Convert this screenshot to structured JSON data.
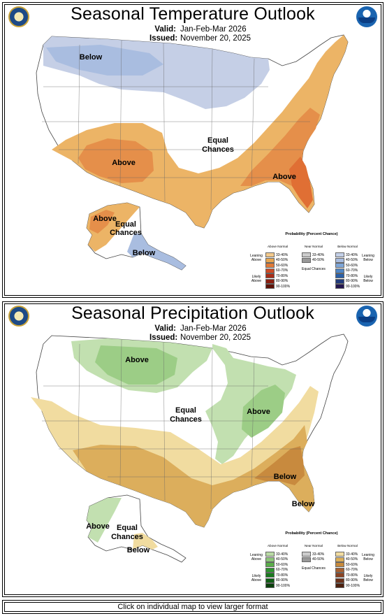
{
  "temperature": {
    "title": "Seasonal Temperature Outlook",
    "valid_key": "Valid:",
    "valid_value": "Jan-Feb-Mar 2026",
    "issued_key": "Issued:",
    "issued_value": "November 20, 2025",
    "labels": {
      "below_north": "Below",
      "above_sw": "Above",
      "equal_center": "Equal Chances",
      "above_se": "Above",
      "above_ak": "Above",
      "equal_ak": "Equal Chances",
      "below_ak": "Below"
    },
    "legend": {
      "title": "Probability (Percent Chance)",
      "col_left": "Above Normal",
      "col_mid": "Near Normal",
      "col_right": "Below Normal",
      "leaning_left": "Leaning Above",
      "likely_left": "Likely Above",
      "leaning_right": "Leaning Below",
      "likely_right": "Likely Below",
      "equal": "Equal Chances",
      "left_rows": [
        "33-40%",
        "40-50%",
        "50-60%",
        "60-70%",
        "70-80%",
        "80-90%",
        "90-100%"
      ],
      "mid_rows": [
        "33-40%",
        "40-50%"
      ],
      "right_rows": [
        "33-40%",
        "40-50%",
        "50-60%",
        "60-70%",
        "70-80%",
        "80-90%",
        "90-100%"
      ],
      "left_colors": [
        "#f2c98c",
        "#e8a650",
        "#e07a38",
        "#cc4a25",
        "#a82c17",
        "#8a1f10",
        "#5e1208"
      ],
      "mid_colors": [
        "#cccccc",
        "#999999"
      ],
      "right_colors": [
        "#c4d0e8",
        "#a8bce0",
        "#7ea6d8",
        "#4f86c6",
        "#2a5fa8",
        "#213a7a",
        "#23164f"
      ]
    }
  },
  "precipitation": {
    "title": "Seasonal Precipitation Outlook",
    "valid_key": "Valid:",
    "valid_value": "Jan-Feb-Mar 2026",
    "issued_key": "Issued:",
    "issued_value": "November 20, 2025",
    "labels": {
      "above_north": "Above",
      "equal_center": "Equal Chances",
      "above_ohio": "Above",
      "below_se": "Below",
      "below_fl": "Below",
      "above_ak": "Above",
      "equal_ak": "Equal Chances",
      "below_ak": "Below"
    },
    "legend": {
      "title": "Probability (Percent Chance)",
      "col_left": "Above Normal",
      "col_mid": "Near Normal",
      "col_right": "Below Normal",
      "leaning_left": "Leaning Above",
      "likely_left": "Likely Above",
      "leaning_right": "Leaning Below",
      "likely_right": "Likely Below",
      "equal": "Equal Chances",
      "left_rows": [
        "33-40%",
        "40-50%",
        "50-60%",
        "60-70%",
        "70-80%",
        "80-90%",
        "90-100%"
      ],
      "mid_rows": [
        "33-40%",
        "40-50%"
      ],
      "right_rows": [
        "33-40%",
        "40-50%",
        "50-60%",
        "60-70%",
        "70-80%",
        "80-90%",
        "90-100%"
      ],
      "left_colors": [
        "#b9dba5",
        "#8dc77a",
        "#5aae4a",
        "#2f9430",
        "#1a7a1e",
        "#0f5e14",
        "#0a3f0c"
      ],
      "mid_colors": [
        "#cccccc",
        "#999999"
      ],
      "right_colors": [
        "#f1dca0",
        "#dcb05a",
        "#c78a3c",
        "#a86030",
        "#8a4424",
        "#6c3018",
        "#4c200e"
      ]
    }
  },
  "footer": "Click on individual map to view larger format",
  "colors": {
    "temp_above_lean": "#ecb466",
    "temp_above_mid": "#e58f4a",
    "temp_above_strong": "#e06f34",
    "temp_below_lean": "#c5cfe6",
    "temp_below_mid": "#a9bde0",
    "precip_above_lean": "#c2e0b0",
    "precip_above_mid": "#9ccd86",
    "precip_below_lean": "#f1dca0",
    "precip_below_mid": "#dcae5c",
    "precip_below_strong": "#c88a3e"
  }
}
